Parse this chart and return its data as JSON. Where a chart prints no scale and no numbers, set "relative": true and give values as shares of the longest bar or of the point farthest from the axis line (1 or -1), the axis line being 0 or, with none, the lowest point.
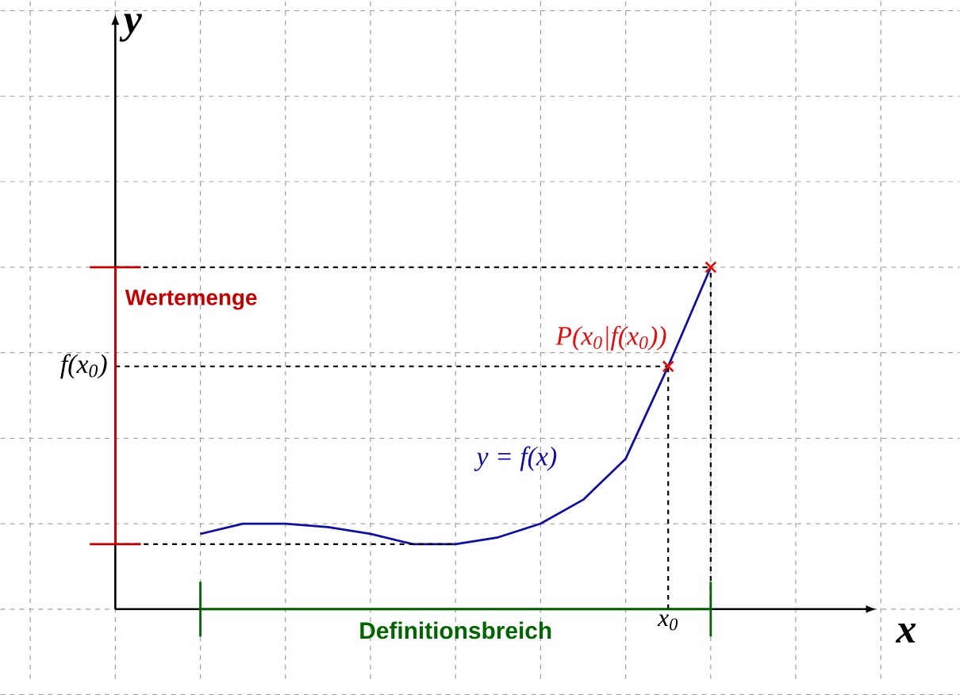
{
  "chart_data": {
    "type": "line",
    "relative": true,
    "xlabel": "x",
    "grid": true,
    "categories": [
      null,
      null,
      null,
      null,
      null,
      null,
      null,
      null,
      null,
      null,
      null,
      null,
      null
    ],
    "series": [
      {
        "name": "y = f(x)",
        "color": "#10109a",
        "line_style": "solid",
        "values": [
          0.22,
          0.25,
          0.25,
          0.24,
          0.22,
          0.19,
          0.19,
          0.21,
          0.25,
          0.32,
          0.44,
          0.71,
          1
        ]
      }
    ],
    "ref_lines": [
      {
        "axis": "y",
        "value": 0.71,
        "label": "f(x$_{0}$)",
        "color": "#000000",
        "line_style": "dashed"
      },
      {
        "axis": "y",
        "value": 1,
        "color": "#000000",
        "line_style": "dashed"
      },
      {
        "axis": "y",
        "value": 0.19,
        "color": "#000000",
        "line_style": "dashed"
      }
    ],
    "annotations": [
      "Definitionsbreich",
      "Wertemenge",
      "x$_{0}$",
      "P(x$_{0}$|f(x$_{0}$))",
      "y"
    ]
  }
}
